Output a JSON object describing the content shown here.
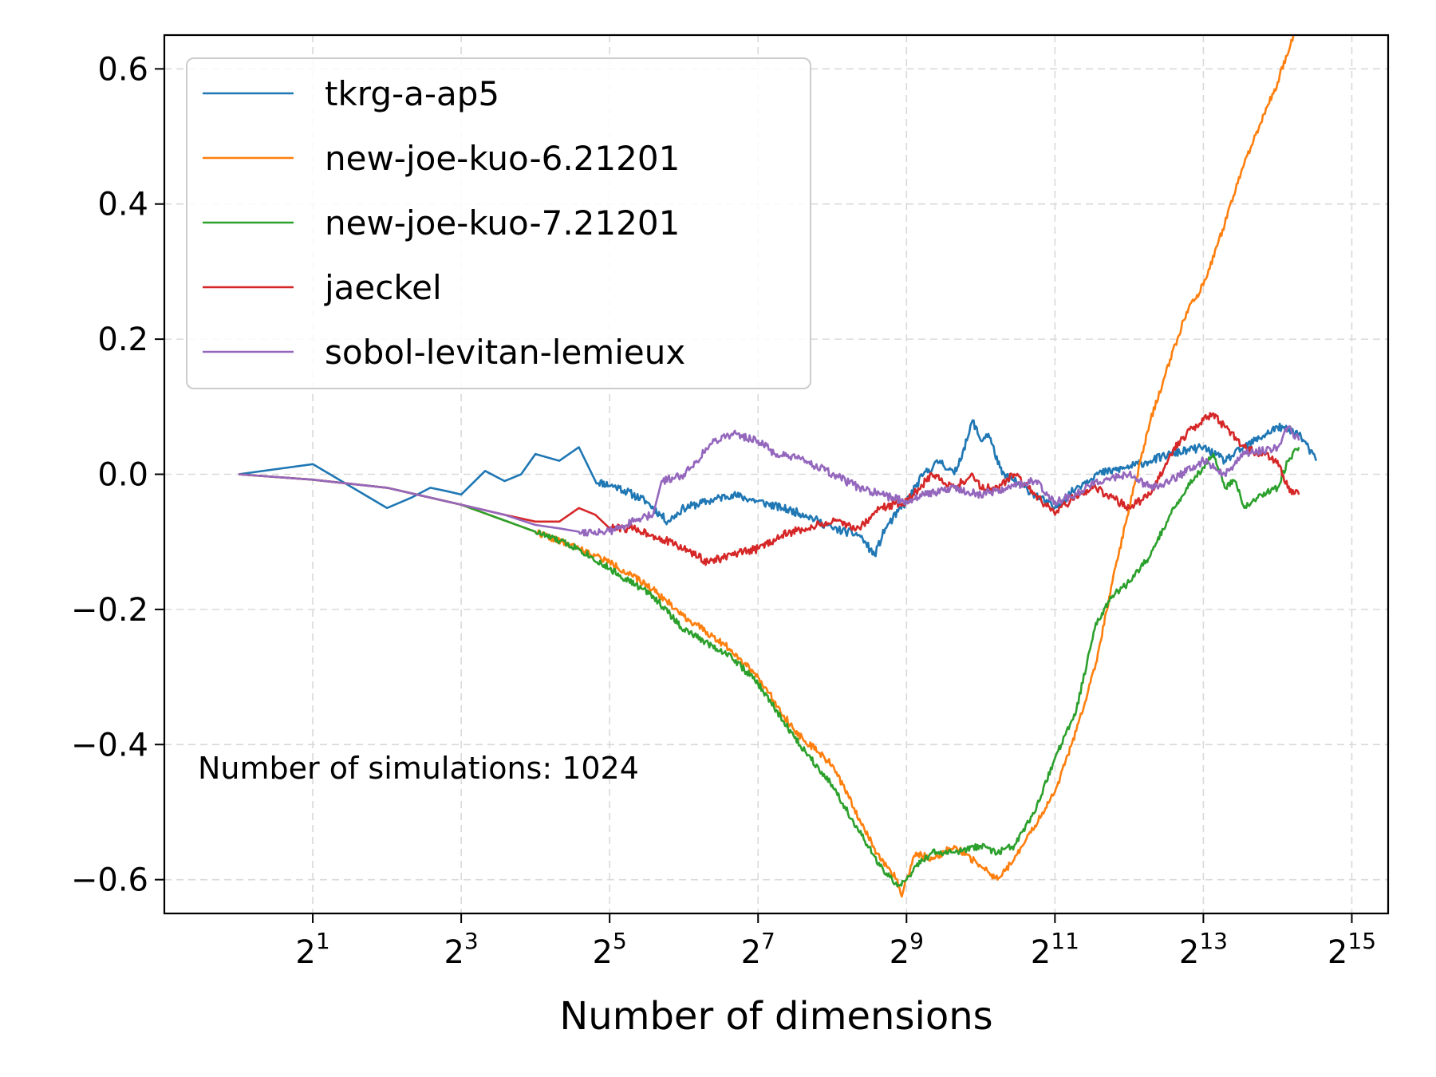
{
  "chart_data": {
    "type": "line",
    "title": "",
    "xlabel": "Number of dimensions",
    "ylabel": "",
    "x_scale": "log2",
    "xlim": [
      0.5,
      46000
    ],
    "ylim": [
      -0.65,
      0.65
    ],
    "grid": true,
    "legend_placement": "top-left",
    "x_ticks": [
      {
        "base": "2",
        "exp": "1",
        "value": 2
      },
      {
        "base": "2",
        "exp": "3",
        "value": 8
      },
      {
        "base": "2",
        "exp": "5",
        "value": 32
      },
      {
        "base": "2",
        "exp": "7",
        "value": 128
      },
      {
        "base": "2",
        "exp": "9",
        "value": 512
      },
      {
        "base": "2",
        "exp": "11",
        "value": 2048
      },
      {
        "base": "2",
        "exp": "13",
        "value": 8192
      },
      {
        "base": "2",
        "exp": "15",
        "value": 32768
      }
    ],
    "y_ticks": [
      {
        "label": "0.6",
        "value": 0.6
      },
      {
        "label": "0.4",
        "value": 0.4
      },
      {
        "label": "0.2",
        "value": 0.2
      },
      {
        "label": "0.0",
        "value": 0.0
      },
      {
        "label": "−0.2",
        "value": -0.2
      },
      {
        "label": "−0.4",
        "value": -0.4
      },
      {
        "label": "−0.6",
        "value": -0.6
      }
    ],
    "annotation": "Number of simulations: 1024",
    "series": [
      {
        "name": "tkrg-a-ap5",
        "color": "#1f77b4",
        "noise": 0.006,
        "seed": 11,
        "points": [
          [
            1,
            0
          ],
          [
            2,
            0.015
          ],
          [
            4,
            -0.05
          ],
          [
            5,
            -0.035
          ],
          [
            6,
            -0.02
          ],
          [
            7,
            -0.025
          ],
          [
            8,
            -0.03
          ],
          [
            10,
            0.005
          ],
          [
            12,
            -0.01
          ],
          [
            14,
            0.0
          ],
          [
            16,
            0.03
          ],
          [
            20,
            0.02
          ],
          [
            24,
            0.04
          ],
          [
            28,
            -0.01
          ],
          [
            35,
            -0.02
          ],
          [
            45,
            -0.04
          ],
          [
            55,
            -0.07
          ],
          [
            64,
            -0.05
          ],
          [
            80,
            -0.04
          ],
          [
            100,
            -0.03
          ],
          [
            128,
            -0.04
          ],
          [
            160,
            -0.05
          ],
          [
            200,
            -0.06
          ],
          [
            256,
            -0.08
          ],
          [
            330,
            -0.09
          ],
          [
            380,
            -0.12
          ],
          [
            420,
            -0.08
          ],
          [
            512,
            -0.04
          ],
          [
            600,
            0.0
          ],
          [
            700,
            0.02
          ],
          [
            800,
            0.0
          ],
          [
            900,
            0.05
          ],
          [
            950,
            0.08
          ],
          [
            1024,
            0.05
          ],
          [
            1100,
            0.06
          ],
          [
            1250,
            0.0
          ],
          [
            1400,
            -0.01
          ],
          [
            1700,
            -0.03
          ],
          [
            2048,
            -0.05
          ],
          [
            2500,
            -0.02
          ],
          [
            3000,
            0.0
          ],
          [
            4000,
            0.01
          ],
          [
            5000,
            0.02
          ],
          [
            6000,
            0.03
          ],
          [
            8192,
            0.04
          ],
          [
            10000,
            0.02
          ],
          [
            12000,
            0.04
          ],
          [
            16384,
            0.07
          ],
          [
            20000,
            0.06
          ],
          [
            23500,
            0.02
          ]
        ]
      },
      {
        "name": "new-joe-kuo-6.21201",
        "color": "#ff7f0e",
        "noise": 0.005,
        "seed": 22,
        "points": [
          [
            1,
            0
          ],
          [
            2,
            -0.008
          ],
          [
            4,
            -0.02
          ],
          [
            8,
            -0.045
          ],
          [
            16,
            -0.085
          ],
          [
            24,
            -0.11
          ],
          [
            32,
            -0.13
          ],
          [
            48,
            -0.17
          ],
          [
            64,
            -0.21
          ],
          [
            100,
            -0.26
          ],
          [
            128,
            -0.3
          ],
          [
            180,
            -0.38
          ],
          [
            256,
            -0.43
          ],
          [
            330,
            -0.51
          ],
          [
            400,
            -0.57
          ],
          [
            470,
            -0.6
          ],
          [
            490,
            -0.625
          ],
          [
            512,
            -0.6
          ],
          [
            560,
            -0.56
          ],
          [
            650,
            -0.57
          ],
          [
            800,
            -0.55
          ],
          [
            1024,
            -0.58
          ],
          [
            1200,
            -0.6
          ],
          [
            1400,
            -0.57
          ],
          [
            1700,
            -0.52
          ],
          [
            2048,
            -0.47
          ],
          [
            2500,
            -0.38
          ],
          [
            3000,
            -0.28
          ],
          [
            3500,
            -0.16
          ],
          [
            4096,
            -0.05
          ],
          [
            5000,
            0.08
          ],
          [
            6000,
            0.17
          ],
          [
            7000,
            0.24
          ],
          [
            8192,
            0.28
          ],
          [
            10000,
            0.37
          ],
          [
            12000,
            0.46
          ],
          [
            14000,
            0.52
          ],
          [
            16384,
            0.58
          ],
          [
            19000,
            0.65
          ]
        ]
      },
      {
        "name": "new-joe-kuo-7.21201",
        "color": "#2ca02c",
        "noise": 0.005,
        "seed": 33,
        "points": [
          [
            1,
            0
          ],
          [
            2,
            -0.008
          ],
          [
            4,
            -0.02
          ],
          [
            8,
            -0.045
          ],
          [
            16,
            -0.085
          ],
          [
            24,
            -0.11
          ],
          [
            32,
            -0.14
          ],
          [
            48,
            -0.18
          ],
          [
            64,
            -0.23
          ],
          [
            100,
            -0.27
          ],
          [
            128,
            -0.31
          ],
          [
            180,
            -0.39
          ],
          [
            256,
            -0.46
          ],
          [
            330,
            -0.53
          ],
          [
            400,
            -0.58
          ],
          [
            470,
            -0.61
          ],
          [
            512,
            -0.6
          ],
          [
            560,
            -0.58
          ],
          [
            650,
            -0.56
          ],
          [
            800,
            -0.56
          ],
          [
            1024,
            -0.55
          ],
          [
            1200,
            -0.56
          ],
          [
            1400,
            -0.55
          ],
          [
            1700,
            -0.5
          ],
          [
            2048,
            -0.42
          ],
          [
            2500,
            -0.35
          ],
          [
            3000,
            -0.22
          ],
          [
            3500,
            -0.18
          ],
          [
            4096,
            -0.16
          ],
          [
            5000,
            -0.12
          ],
          [
            6000,
            -0.06
          ],
          [
            7000,
            -0.02
          ],
          [
            8192,
            0.01
          ],
          [
            9000,
            0.03
          ],
          [
            10000,
            -0.02
          ],
          [
            11000,
            -0.01
          ],
          [
            12000,
            -0.05
          ],
          [
            14000,
            -0.03
          ],
          [
            16384,
            -0.02
          ],
          [
            18000,
            0.02
          ],
          [
            20000,
            0.04
          ]
        ]
      },
      {
        "name": "jaeckel",
        "color": "#d62728",
        "noise": 0.006,
        "seed": 44,
        "points": [
          [
            1,
            0
          ],
          [
            2,
            -0.008
          ],
          [
            4,
            -0.02
          ],
          [
            8,
            -0.045
          ],
          [
            12,
            -0.06
          ],
          [
            16,
            -0.07
          ],
          [
            20,
            -0.07
          ],
          [
            24,
            -0.05
          ],
          [
            28,
            -0.06
          ],
          [
            32,
            -0.08
          ],
          [
            40,
            -0.08
          ],
          [
            48,
            -0.09
          ],
          [
            64,
            -0.11
          ],
          [
            80,
            -0.13
          ],
          [
            100,
            -0.12
          ],
          [
            128,
            -0.11
          ],
          [
            160,
            -0.09
          ],
          [
            200,
            -0.08
          ],
          [
            256,
            -0.07
          ],
          [
            330,
            -0.08
          ],
          [
            400,
            -0.05
          ],
          [
            512,
            -0.04
          ],
          [
            650,
            0.0
          ],
          [
            800,
            -0.02
          ],
          [
            950,
            0.0
          ],
          [
            1024,
            -0.02
          ],
          [
            1200,
            -0.02
          ],
          [
            1400,
            0.0
          ],
          [
            1700,
            -0.03
          ],
          [
            2048,
            -0.06
          ],
          [
            2500,
            -0.03
          ],
          [
            3000,
            -0.02
          ],
          [
            4096,
            -0.05
          ],
          [
            5000,
            -0.03
          ],
          [
            6000,
            0.03
          ],
          [
            7000,
            0.06
          ],
          [
            8192,
            0.08
          ],
          [
            9000,
            0.09
          ],
          [
            10000,
            0.07
          ],
          [
            12000,
            0.04
          ],
          [
            14000,
            0.03
          ],
          [
            16384,
            0.02
          ],
          [
            18000,
            -0.02
          ],
          [
            20000,
            -0.03
          ]
        ]
      },
      {
        "name": "sobol-levitan-lemieux",
        "color": "#9467bd",
        "noise": 0.006,
        "seed": 55,
        "points": [
          [
            1,
            0
          ],
          [
            2,
            -0.008
          ],
          [
            4,
            -0.02
          ],
          [
            8,
            -0.045
          ],
          [
            12,
            -0.06
          ],
          [
            16,
            -0.075
          ],
          [
            20,
            -0.08
          ],
          [
            24,
            -0.085
          ],
          [
            32,
            -0.085
          ],
          [
            40,
            -0.07
          ],
          [
            48,
            -0.06
          ],
          [
            52,
            -0.01
          ],
          [
            64,
            0.0
          ],
          [
            72,
            0.02
          ],
          [
            85,
            0.05
          ],
          [
            100,
            0.06
          ],
          [
            128,
            0.05
          ],
          [
            150,
            0.03
          ],
          [
            200,
            0.02
          ],
          [
            256,
            0.0
          ],
          [
            330,
            -0.02
          ],
          [
            400,
            -0.03
          ],
          [
            512,
            -0.04
          ],
          [
            600,
            -0.03
          ],
          [
            800,
            -0.02
          ],
          [
            1024,
            -0.03
          ],
          [
            1300,
            -0.02
          ],
          [
            1700,
            -0.01
          ],
          [
            2048,
            -0.04
          ],
          [
            2500,
            -0.03
          ],
          [
            3000,
            -0.01
          ],
          [
            4096,
            0.0
          ],
          [
            5000,
            -0.02
          ],
          [
            6000,
            -0.01
          ],
          [
            8192,
            0.02
          ],
          [
            10000,
            0.0
          ],
          [
            12000,
            0.03
          ],
          [
            16384,
            0.04
          ],
          [
            18000,
            0.07
          ],
          [
            20000,
            0.05
          ]
        ]
      }
    ]
  }
}
